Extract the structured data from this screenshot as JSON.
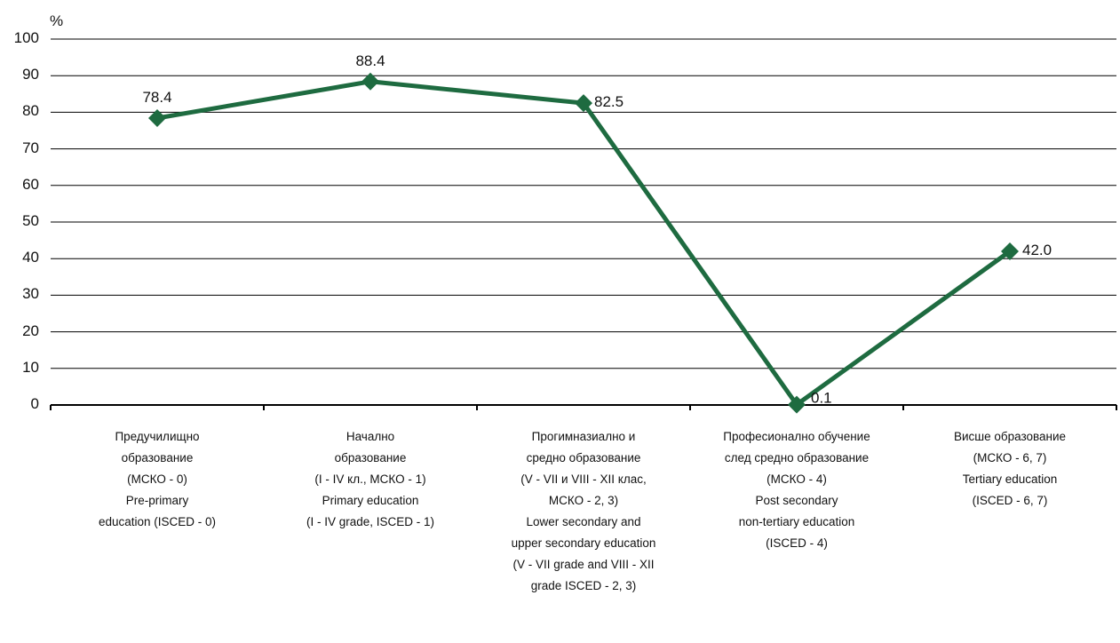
{
  "chart_data": {
    "type": "line",
    "unit_label": "%",
    "ylim": [
      0,
      100
    ],
    "yticks": [
      "0",
      "10",
      "20",
      "30",
      "40",
      "50",
      "60",
      "70",
      "80",
      "90",
      "100"
    ],
    "grid": true,
    "line_color": "#1e6b40",
    "categories": [
      [
        "Предучилищно",
        "образование",
        "(МСКО - 0)",
        "Pre-primary",
        "education (ISCED - 0)"
      ],
      [
        "Начално",
        "образование",
        "(I - IV кл., МСКО - 1)",
        "Primary education",
        "(I - IV grade, ISCED - 1)"
      ],
      [
        "Прогимназиално и",
        "средно образование",
        "(V - VII и VIII - XII клас,",
        "МСКО - 2, 3)",
        "Lower secondary and",
        "upper secondary education",
        "(V - VII grade and VIII - XII",
        "grade  ISCED - 2, 3)"
      ],
      [
        "Професионално обучение",
        "след средно образование",
        "(МСКО - 4)",
        "Post secondary",
        "non-tertiary education",
        "(ISCED - 4)"
      ],
      [
        "Висше образование",
        "(МСКО - 6, 7)",
        "Tertiary education",
        "(ISCED - 6, 7)"
      ]
    ],
    "values": [
      78.4,
      88.4,
      82.5,
      0.1,
      42.0
    ],
    "data_labels": [
      "78.4",
      "88.4",
      "82.5",
      "0.1",
      "42.0"
    ]
  }
}
